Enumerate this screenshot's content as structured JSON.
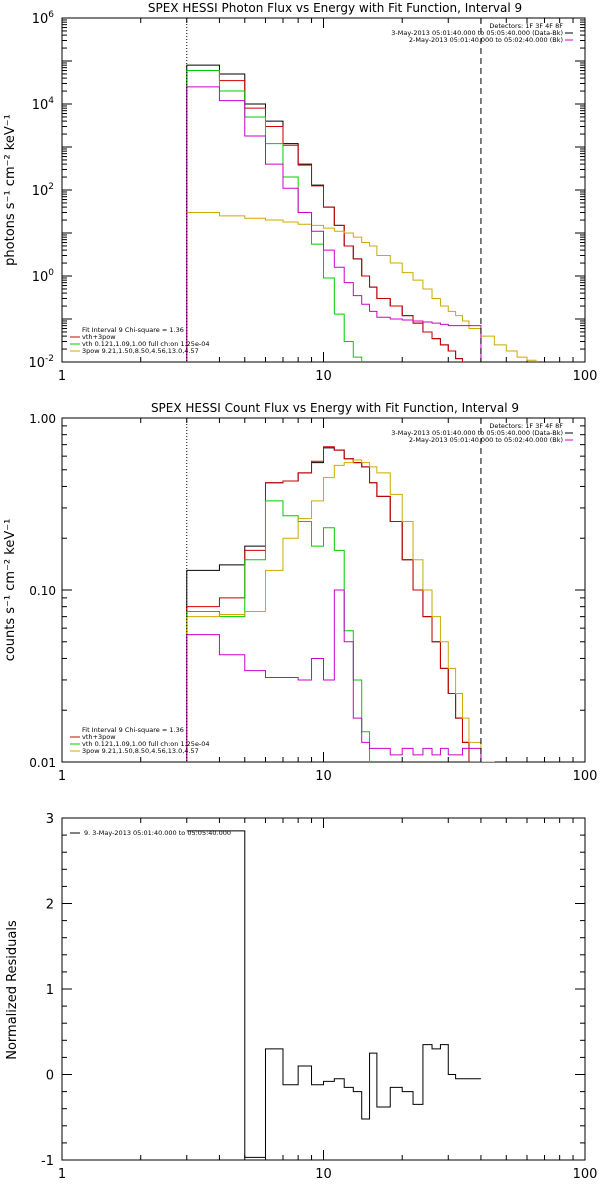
{
  "chart_data": [
    {
      "type": "line",
      "title": "SPEX HESSI Photon Flux vs Energy with Fit Function, Interval 9",
      "ylabel": "photons s⁻¹ cm⁻² keV⁻¹",
      "xlabel": "",
      "xscale": "log",
      "yscale": "log",
      "xlim": [
        1,
        100
      ],
      "ylim": [
        0.01,
        1000000
      ],
      "xtick_labels": [
        "1",
        "10",
        "100"
      ],
      "ytick_labels": [
        {
          "base": "10",
          "exp": "-2"
        },
        {
          "base": "10",
          "exp": "0"
        },
        {
          "base": "10",
          "exp": "2"
        },
        {
          "base": "10",
          "exp": "4"
        },
        {
          "base": "10",
          "exp": "6"
        }
      ],
      "vlines": [
        {
          "x": 3.0,
          "style": "dotted"
        },
        {
          "x": 40.0,
          "style": "dashed"
        }
      ],
      "info_text": [
        "Detectors: 1F 3F 4F 8F",
        "3-May-2013 05:01:40.000 to 05:05:40.000 (Data-Bk)",
        "2-May-2013 05:01:40.000 to 05:02:40.000 (Bk)"
      ],
      "info_colors": [
        "#000000",
        "#cc00cc"
      ],
      "fit_text": [
        "Fit Interval  9    Chi-square = 1.36",
        "vth+3pow",
        "vth 0.121,1.09,1.00  full ch:on 1.25e-04",
        "3pow 9.21,1.50,8.50,4.56,13.0,4.57"
      ],
      "fit_colors": [
        "#cc0000",
        "#00cc00",
        "#ccaa00"
      ],
      "edges": [
        3.0,
        4.0,
        5.0,
        6.0,
        7.0,
        8.0,
        9.0,
        10.0,
        11.0,
        12.0,
        13.0,
        14.0,
        15.0,
        16.0,
        18.0,
        20.0,
        22.0,
        24.0,
        26.0,
        28.0,
        30.0,
        32.0,
        34.0,
        36.0,
        40.0,
        45.0,
        50.0,
        55.0,
        60.0,
        65.0
      ],
      "series": [
        {
          "color": "#000000",
          "values": [
            80000,
            50000,
            10000,
            4000,
            1200,
            400,
            130,
            40,
            15,
            5,
            2.5,
            1.0,
            0.55,
            0.3,
            0.2,
            0.12,
            0.08,
            0.05,
            0.035,
            0.025,
            0.018,
            0.012
          ]
        },
        {
          "color": "#cc0000",
          "values": [
            60000,
            35000,
            8000,
            3000,
            1100,
            380,
            125,
            40,
            15,
            5,
            2.5,
            1.0,
            0.55,
            0.3,
            0.2,
            0.12,
            0.08,
            0.05,
            0.035,
            0.025,
            0.018,
            0.012
          ]
        },
        {
          "color": "#00cc00",
          "values": [
            60000,
            20000,
            5000,
            1200,
            200,
            30,
            5.5,
            0.9,
            0.13,
            0.03,
            0.013
          ]
        },
        {
          "color": "#ccaa00",
          "values": [
            30,
            25,
            22,
            20,
            18,
            16,
            15,
            13,
            11,
            10,
            8,
            6,
            5,
            3,
            2,
            1.2,
            0.8,
            0.5,
            0.3,
            0.2,
            0.15,
            0.12,
            0.09,
            0.06,
            0.04,
            0.025,
            0.018,
            0.013,
            0.011
          ]
        },
        {
          "color": "#cc00cc",
          "values": [
            25000,
            12000,
            1800,
            400,
            110,
            30,
            11,
            4,
            1.6,
            0.7,
            0.35,
            0.22,
            0.15,
            0.11,
            0.1,
            0.095,
            0.09,
            0.085,
            0.08,
            0.075,
            0.07,
            0.07,
            0.07,
            0.07
          ]
        }
      ]
    },
    {
      "type": "line",
      "title": "SPEX HESSI Count Flux vs Energy with Fit Function, Interval 9",
      "ylabel": "counts s⁻¹ cm⁻² keV⁻¹",
      "xlabel": "",
      "xscale": "log",
      "yscale": "log",
      "xlim": [
        1,
        100
      ],
      "ylim": [
        0.01,
        1.0
      ],
      "xtick_labels": [
        "1",
        "10",
        "100"
      ],
      "ytick_labels": [
        "0.01",
        "0.10",
        "1.00"
      ],
      "vlines": [
        {
          "x": 3.0,
          "style": "dotted"
        },
        {
          "x": 40.0,
          "style": "dashed"
        }
      ],
      "info_text": [
        "Detectors: 1F 3F 4F 8F",
        "3-May-2013 05:01:40.000 to 05:05:40.000 (Data-Bk)",
        "2-May-2013 05:01:40.000 to 05:02:40.000 (Bk)"
      ],
      "info_colors": [
        "#000000",
        "#cc00cc"
      ],
      "fit_text": [
        "Fit Interval  9    Chi-square = 1.36",
        "vth+3pow",
        "vth 0.121,1.09,1.00  full ch:on 1.25e-04",
        "3pow 9.21,1.50,8.50,4.56,13.0,4.57"
      ],
      "fit_colors": [
        "#cc0000",
        "#00cc00",
        "#ccaa00"
      ],
      "edges": [
        3.0,
        4.0,
        5.0,
        6.0,
        7.0,
        8.0,
        9.0,
        10.0,
        11.0,
        12.0,
        13.0,
        14.0,
        15.0,
        16.0,
        18.0,
        20.0,
        22.0,
        24.0,
        26.0,
        28.0,
        30.0,
        32.0,
        34.0,
        36.0,
        40.0,
        45.0,
        50.0,
        55.0,
        60.0,
        65.0
      ],
      "series": [
        {
          "color": "#000000",
          "values": [
            0.13,
            0.14,
            0.18,
            0.42,
            0.43,
            0.48,
            0.55,
            0.67,
            0.65,
            0.58,
            0.55,
            0.52,
            0.42,
            0.35,
            0.25,
            0.15,
            0.1,
            0.07,
            0.05,
            0.035,
            0.025,
            0.018,
            0.013,
            0.01
          ]
        },
        {
          "color": "#cc0000",
          "values": [
            0.08,
            0.09,
            0.17,
            0.42,
            0.43,
            0.48,
            0.56,
            0.68,
            0.65,
            0.58,
            0.55,
            0.52,
            0.42,
            0.35,
            0.25,
            0.15,
            0.1,
            0.07,
            0.05,
            0.035,
            0.025,
            0.018,
            0.013,
            0.01
          ]
        },
        {
          "color": "#00cc00",
          "values": [
            0.075,
            0.07,
            0.15,
            0.33,
            0.27,
            0.25,
            0.18,
            0.23,
            0.17,
            0.058,
            0.03,
            0.015
          ]
        },
        {
          "color": "#ccaa00",
          "values": [
            0.07,
            0.072,
            0.075,
            0.13,
            0.2,
            0.26,
            0.33,
            0.45,
            0.53,
            0.55,
            0.57,
            0.55,
            0.52,
            0.48,
            0.36,
            0.25,
            0.15,
            0.1,
            0.07,
            0.05,
            0.035,
            0.025,
            0.018,
            0.013,
            0.01
          ]
        },
        {
          "color": "#cc00cc",
          "values": [
            0.055,
            0.042,
            0.034,
            0.031,
            0.031,
            0.03,
            0.04,
            0.03,
            0.1,
            0.05,
            0.018,
            0.013,
            0.012,
            0.012,
            0.011,
            0.012,
            0.011,
            0.012,
            0.011,
            0.012,
            0.011,
            0.011,
            0.012,
            0.012
          ]
        }
      ]
    },
    {
      "type": "line",
      "title": "",
      "ylabel": "Normalized Residuals",
      "xlabel": "",
      "xscale": "log",
      "yscale": "linear",
      "xlim": [
        1,
        100
      ],
      "ylim": [
        -1,
        3
      ],
      "xtick_labels": [
        "1",
        "10",
        "100"
      ],
      "ytick_labels": [
        "-1",
        "0",
        "1",
        "2",
        "3"
      ],
      "legend": "9.  3-May-2013 05:01:40.000 to 05:05:40.000",
      "edges": [
        3.0,
        4.0,
        5.0,
        6.0,
        7.0,
        8.0,
        9.0,
        10.0,
        11.0,
        12.0,
        13.0,
        14.0,
        15.0,
        16.0,
        18.0,
        20.0,
        22.0,
        24.0,
        26.0,
        28.0,
        30.0,
        32.0,
        34.0,
        36.0,
        40.0
      ],
      "series": [
        {
          "color": "#000000",
          "values": [
            2.85,
            2.85,
            -0.97,
            0.3,
            -0.12,
            0.1,
            -0.12,
            -0.08,
            -0.05,
            -0.15,
            -0.2,
            -0.52,
            0.25,
            -0.38,
            -0.15,
            -0.2,
            -0.35,
            0.35,
            0.3,
            0.35,
            0.0,
            -0.05,
            -0.05,
            -0.05
          ]
        }
      ]
    }
  ]
}
